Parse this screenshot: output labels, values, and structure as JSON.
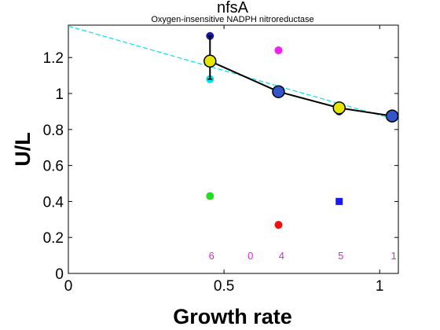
{
  "chart_data": {
    "type": "scatter",
    "title": "nfsA",
    "subtitle": "Oxygen-insensitive NADPH nitroreductase",
    "xlabel": "Growth rate",
    "ylabel": "U/L",
    "xlim": [
      0,
      1.06
    ],
    "ylim": [
      0,
      1.38
    ],
    "xticks": [
      0,
      0.5,
      1
    ],
    "xtick_labels": [
      "0",
      "0.5",
      "1"
    ],
    "yticks": [
      0,
      0.2,
      0.4,
      0.6,
      0.8,
      1.0,
      1.2
    ],
    "ytick_labels": [
      "0",
      "0.2",
      "0.4",
      "0.6",
      "0.8",
      "1",
      "1.2"
    ],
    "grid": false,
    "legend": "none",
    "fit_line": {
      "color": "#00e5e5",
      "style": "dashed",
      "x": [
        0,
        1.06
      ],
      "y": [
        1.375,
        0.85
      ]
    },
    "mean_line": {
      "color": "#000000",
      "x": [
        0.455,
        0.675,
        0.87,
        1.04
      ],
      "y": [
        1.18,
        1.01,
        0.92,
        0.875
      ],
      "error_bar": {
        "x": 0.455,
        "low": 1.08,
        "high": 1.32
      },
      "marker_colors": [
        "#e5e500",
        "#3355cc",
        "#e5e500",
        "#3355cc"
      ]
    },
    "points": [
      {
        "x": 0.455,
        "y": 1.32,
        "color": "#1a1aaa",
        "shape": "circle"
      },
      {
        "x": 0.455,
        "y": 1.08,
        "color": "#00e5e5",
        "shape": "circle"
      },
      {
        "x": 0.455,
        "y": 0.43,
        "color": "#22dd22",
        "shape": "circle"
      },
      {
        "x": 0.675,
        "y": 1.24,
        "color": "#ee22ee",
        "shape": "circle"
      },
      {
        "x": 0.675,
        "y": 0.27,
        "color": "#ee1111",
        "shape": "circle"
      },
      {
        "x": 0.87,
        "y": 0.9,
        "color": "#1a1aaa",
        "shape": "circle"
      },
      {
        "x": 0.87,
        "y": 0.4,
        "color": "#1a1aee",
        "shape": "square"
      },
      {
        "x": 1.04,
        "y": 0.875,
        "color": "#1a1aaa",
        "shape": "circle"
      }
    ],
    "counts": {
      "color": "#dd22dd",
      "y": 0.1,
      "x": [
        0.46,
        0.585,
        0.685,
        0.875,
        1.045
      ],
      "labels": [
        "6",
        "0",
        "4",
        "5",
        "1"
      ]
    }
  }
}
